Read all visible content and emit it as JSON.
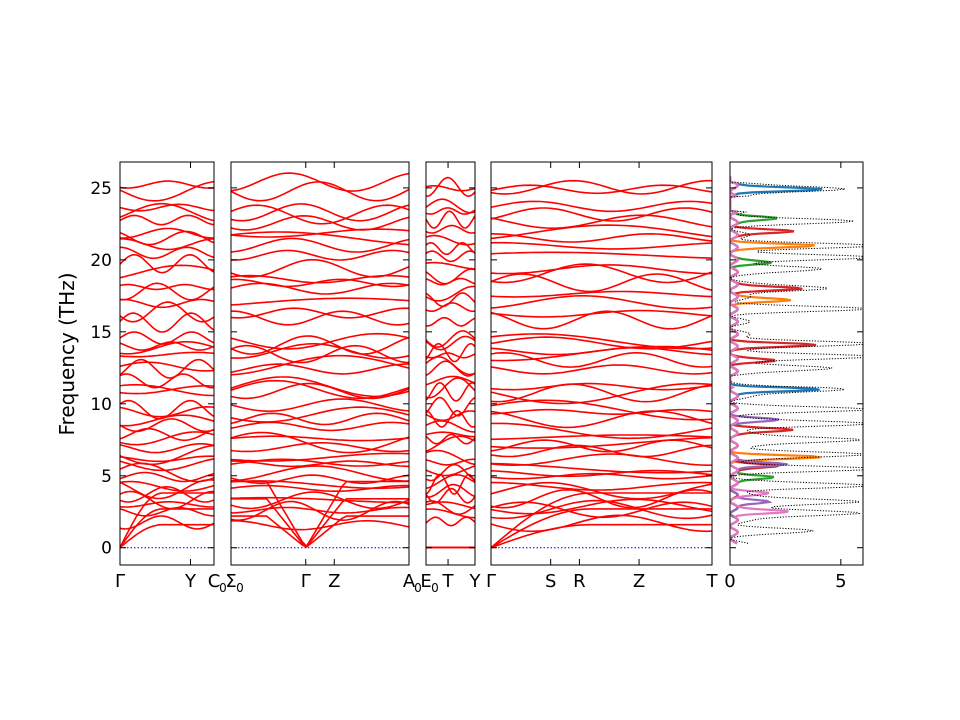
{
  "chart_data": {
    "type": "line",
    "title": "",
    "ylabel": "Frequency (THz)",
    "ylim": [
      -1.2,
      26.8
    ],
    "yticks": [
      0,
      5,
      10,
      15,
      20,
      25
    ],
    "band_color": "#ff0000",
    "zero_line_color": "#0000cc",
    "band_panels": [
      {
        "xlim": [
          0,
          1
        ],
        "ticks": [
          {
            "x": 0,
            "label": "Γ"
          },
          {
            "x": 0.75,
            "label": "Y"
          },
          {
            "x": 1,
            "label": "C"
          }
        ]
      },
      {
        "xlim": [
          0,
          1
        ],
        "ticks": [
          {
            "x": 0,
            "label": "Σ"
          },
          {
            "x": 0.42,
            "label": "Γ"
          },
          {
            "x": 0.58,
            "label": "Z"
          },
          {
            "x": 1,
            "label": "A"
          }
        ]
      },
      {
        "xlim": [
          0,
          1
        ],
        "ticks": [
          {
            "x": 0,
            "label": "E"
          },
          {
            "x": 0.45,
            "label": "T"
          },
          {
            "x": 1,
            "label": "Y"
          }
        ]
      },
      {
        "xlim": [
          0,
          1
        ],
        "ticks": [
          {
            "x": 0,
            "label": "Γ"
          },
          {
            "x": 0.27,
            "label": "S"
          },
          {
            "x": 0.4,
            "label": "R"
          },
          {
            "x": 0.67,
            "label": "Z"
          },
          {
            "x": 1,
            "label": "T"
          }
        ]
      }
    ],
    "subscripts": [
      {
        "after_label": "C",
        "text": "0"
      },
      {
        "after_label": "Σ",
        "text": "0"
      },
      {
        "after_label": "A",
        "text": "0"
      },
      {
        "after_label": "E",
        "text": "0"
      }
    ],
    "band_frequencies_at_gamma": [
      0,
      0,
      0,
      1.6,
      2.4,
      2.8,
      3.1,
      3.5,
      3.9,
      4.3,
      4.8,
      5.2,
      5.6,
      6.1,
      6.5,
      7.0,
      7.4,
      7.8,
      8.3,
      8.8,
      9.3,
      9.8,
      10.7,
      11.0,
      11.4,
      12.3,
      12.8,
      13.3,
      13.7,
      14.2,
      14.5,
      15.8,
      16.5,
      17.2,
      17.8,
      18.3,
      18.9,
      19.6,
      20.3,
      20.9,
      21.4,
      22.0,
      22.7,
      23.2,
      23.5,
      24.8,
      25.2
    ],
    "dos_panel": {
      "xlim": [
        0,
        6
      ],
      "xticks": [
        0,
        5
      ],
      "total_color": "#000000",
      "total_style": "dotted",
      "projection_colors": [
        "#1f77b4",
        "#ff7f0e",
        "#2ca02c",
        "#d62728",
        "#9467bd",
        "#e377c2"
      ],
      "total_peaks": [
        {
          "f": 24.9,
          "dos": 4.9
        },
        {
          "f": 22.7,
          "dos": 4.8
        },
        {
          "f": 21.0,
          "dos": 5.9
        },
        {
          "f": 20.2,
          "dos": 5.9
        },
        {
          "f": 19.4,
          "dos": 3.8
        },
        {
          "f": 18.0,
          "dos": 4.2
        },
        {
          "f": 16.6,
          "dos": 5.4
        },
        {
          "f": 14.2,
          "dos": 5.9
        },
        {
          "f": 13.3,
          "dos": 5.9
        },
        {
          "f": 12.5,
          "dos": 4.2
        },
        {
          "f": 11.0,
          "dos": 5.2
        },
        {
          "f": 9.6,
          "dos": 5.5
        },
        {
          "f": 8.6,
          "dos": 5.9
        },
        {
          "f": 7.5,
          "dos": 5.9
        },
        {
          "f": 6.5,
          "dos": 5.9
        },
        {
          "f": 5.5,
          "dos": 5.9
        },
        {
          "f": 4.3,
          "dos": 5.9
        },
        {
          "f": 3.2,
          "dos": 5.9
        },
        {
          "f": 2.4,
          "dos": 5.9
        },
        {
          "f": 1.2,
          "dos": 3.0
        }
      ],
      "projection_peaks": [
        {
          "series": 0,
          "f": 24.9,
          "dos": 4.1
        },
        {
          "series": 0,
          "f": 11.0,
          "dos": 4.1
        },
        {
          "series": 1,
          "f": 21.0,
          "dos": 3.6
        },
        {
          "series": 1,
          "f": 17.2,
          "dos": 2.6
        },
        {
          "series": 1,
          "f": 6.3,
          "dos": 3.8
        },
        {
          "series": 2,
          "f": 22.9,
          "dos": 2.1
        },
        {
          "series": 2,
          "f": 19.8,
          "dos": 1.7
        },
        {
          "series": 2,
          "f": 4.9,
          "dos": 2.0
        },
        {
          "series": 3,
          "f": 22.0,
          "dos": 2.8
        },
        {
          "series": 3,
          "f": 18.0,
          "dos": 3.2
        },
        {
          "series": 3,
          "f": 14.1,
          "dos": 3.6
        },
        {
          "series": 3,
          "f": 13.0,
          "dos": 1.8
        },
        {
          "series": 3,
          "f": 8.2,
          "dos": 2.7
        },
        {
          "series": 3,
          "f": 5.7,
          "dos": 2.2
        },
        {
          "series": 4,
          "f": 8.9,
          "dos": 1.9
        },
        {
          "series": 4,
          "f": 5.8,
          "dos": 2.6
        },
        {
          "series": 4,
          "f": 3.2,
          "dos": 1.8
        },
        {
          "series": 5,
          "f": 2.5,
          "dos": 2.6
        },
        {
          "series": 5,
          "f": 3.8,
          "dos": 1.5
        }
      ]
    }
  }
}
